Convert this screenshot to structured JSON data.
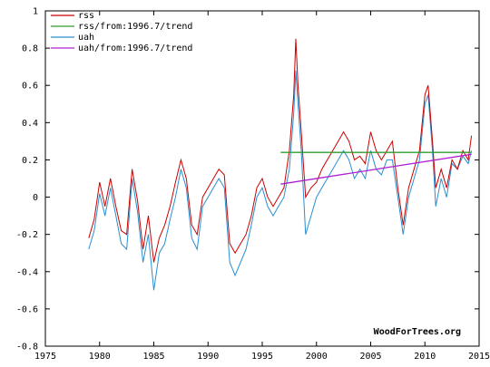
{
  "chart_data": {
    "type": "line",
    "title": "",
    "xlabel": "",
    "ylabel": "",
    "xlim": [
      1975,
      2015
    ],
    "ylim": [
      -0.8,
      1.0
    ],
    "x_ticks": [
      1975,
      1980,
      1985,
      1990,
      1995,
      2000,
      2005,
      2010,
      2015
    ],
    "y_ticks": [
      -0.8,
      -0.6,
      -0.4,
      -0.2,
      0,
      0.2,
      0.4,
      0.6,
      0.8,
      1
    ],
    "y_tick_labels": [
      "-0.8",
      "-0.6",
      "-0.4",
      "-0.2",
      "0",
      "0.2",
      "0.4",
      "0.6",
      "0.8",
      "1"
    ],
    "grid": false,
    "legend_position": "top-left",
    "credit": "WoodForTrees.org",
    "series": [
      {
        "name": "rss",
        "color": "#cc0000",
        "x": [
          1979.0,
          1979.5,
          1980.0,
          1980.5,
          1981.0,
          1981.5,
          1982.0,
          1982.5,
          1983.0,
          1983.5,
          1984.0,
          1984.5,
          1985.0,
          1985.5,
          1986.0,
          1986.5,
          1987.0,
          1987.5,
          1988.0,
          1988.5,
          1989.0,
          1989.5,
          1990.0,
          1990.5,
          1991.0,
          1991.5,
          1992.0,
          1992.5,
          1993.0,
          1993.5,
          1994.0,
          1994.5,
          1995.0,
          1995.5,
          1996.0,
          1996.5,
          1997.0,
          1997.5,
          1997.9,
          1998.1,
          1998.3,
          1998.6,
          1999.0,
          1999.5,
          2000.0,
          2000.5,
          2001.0,
          2001.5,
          2002.0,
          2002.5,
          2003.0,
          2003.5,
          2004.0,
          2004.5,
          2005.0,
          2005.5,
          2006.0,
          2006.5,
          2007.0,
          2007.5,
          2008.0,
          2008.5,
          2009.0,
          2009.5,
          2010.0,
          2010.3,
          2010.7,
          2011.0,
          2011.5,
          2012.0,
          2012.5,
          2013.0,
          2013.5,
          2014.0,
          2014.3
        ],
        "y": [
          -0.22,
          -0.12,
          0.08,
          -0.05,
          0.1,
          -0.05,
          -0.18,
          -0.2,
          0.15,
          -0.02,
          -0.28,
          -0.1,
          -0.35,
          -0.22,
          -0.15,
          -0.05,
          0.08,
          0.2,
          0.1,
          -0.15,
          -0.2,
          0.0,
          0.05,
          0.1,
          0.15,
          0.12,
          -0.25,
          -0.3,
          -0.25,
          -0.2,
          -0.1,
          0.05,
          0.1,
          0.0,
          -0.05,
          0.0,
          0.05,
          0.25,
          0.55,
          0.85,
          0.6,
          0.35,
          0.0,
          0.05,
          0.08,
          0.15,
          0.2,
          0.25,
          0.3,
          0.35,
          0.3,
          0.2,
          0.22,
          0.18,
          0.35,
          0.25,
          0.2,
          0.25,
          0.3,
          0.05,
          -0.15,
          0.05,
          0.15,
          0.25,
          0.55,
          0.6,
          0.3,
          0.05,
          0.15,
          0.05,
          0.2,
          0.15,
          0.25,
          0.2,
          0.33
        ]
      },
      {
        "name": "rss/from:1996.7/trend",
        "color": "#2e9e2e",
        "x": [
          1996.7,
          2014.3
        ],
        "y": [
          0.24,
          0.24
        ]
      },
      {
        "name": "uah",
        "color": "#2a8fd0",
        "x": [
          1979.0,
          1979.5,
          1980.0,
          1980.5,
          1981.0,
          1981.5,
          1982.0,
          1982.5,
          1983.0,
          1983.5,
          1984.0,
          1984.5,
          1985.0,
          1985.5,
          1986.0,
          1986.5,
          1987.0,
          1987.5,
          1988.0,
          1988.5,
          1989.0,
          1989.5,
          1990.0,
          1990.5,
          1991.0,
          1991.5,
          1992.0,
          1992.5,
          1993.0,
          1993.5,
          1994.0,
          1994.5,
          1995.0,
          1995.5,
          1996.0,
          1996.5,
          1997.0,
          1997.5,
          1997.9,
          1998.1,
          1998.3,
          1998.6,
          1999.0,
          1999.5,
          2000.0,
          2000.5,
          2001.0,
          2001.5,
          2002.0,
          2002.5,
          2003.0,
          2003.5,
          2004.0,
          2004.5,
          2005.0,
          2005.5,
          2006.0,
          2006.5,
          2007.0,
          2007.5,
          2008.0,
          2008.5,
          2009.0,
          2009.5,
          2010.0,
          2010.3,
          2010.7,
          2011.0,
          2011.5,
          2012.0,
          2012.5,
          2013.0,
          2013.5,
          2014.0,
          2014.3
        ],
        "y": [
          -0.28,
          -0.18,
          0.02,
          -0.1,
          0.05,
          -0.1,
          -0.25,
          -0.28,
          0.1,
          -0.08,
          -0.35,
          -0.2,
          -0.5,
          -0.3,
          -0.25,
          -0.12,
          0.0,
          0.15,
          0.05,
          -0.22,
          -0.28,
          -0.05,
          0.0,
          0.05,
          0.1,
          0.05,
          -0.35,
          -0.42,
          -0.35,
          -0.28,
          -0.15,
          0.0,
          0.05,
          -0.05,
          -0.1,
          -0.05,
          0.0,
          0.15,
          0.45,
          0.68,
          0.5,
          0.25,
          -0.2,
          -0.1,
          0.0,
          0.05,
          0.1,
          0.15,
          0.2,
          0.25,
          0.2,
          0.1,
          0.15,
          0.1,
          0.25,
          0.15,
          0.12,
          0.2,
          0.2,
          0.0,
          -0.2,
          0.0,
          0.1,
          0.2,
          0.5,
          0.55,
          0.25,
          -0.05,
          0.1,
          0.0,
          0.18,
          0.15,
          0.22,
          0.18,
          0.25
        ]
      },
      {
        "name": "uah/from:1996.7/trend",
        "color": "#b020d0",
        "x": [
          1996.7,
          2014.3
        ],
        "y": [
          0.07,
          0.23
        ]
      }
    ]
  }
}
